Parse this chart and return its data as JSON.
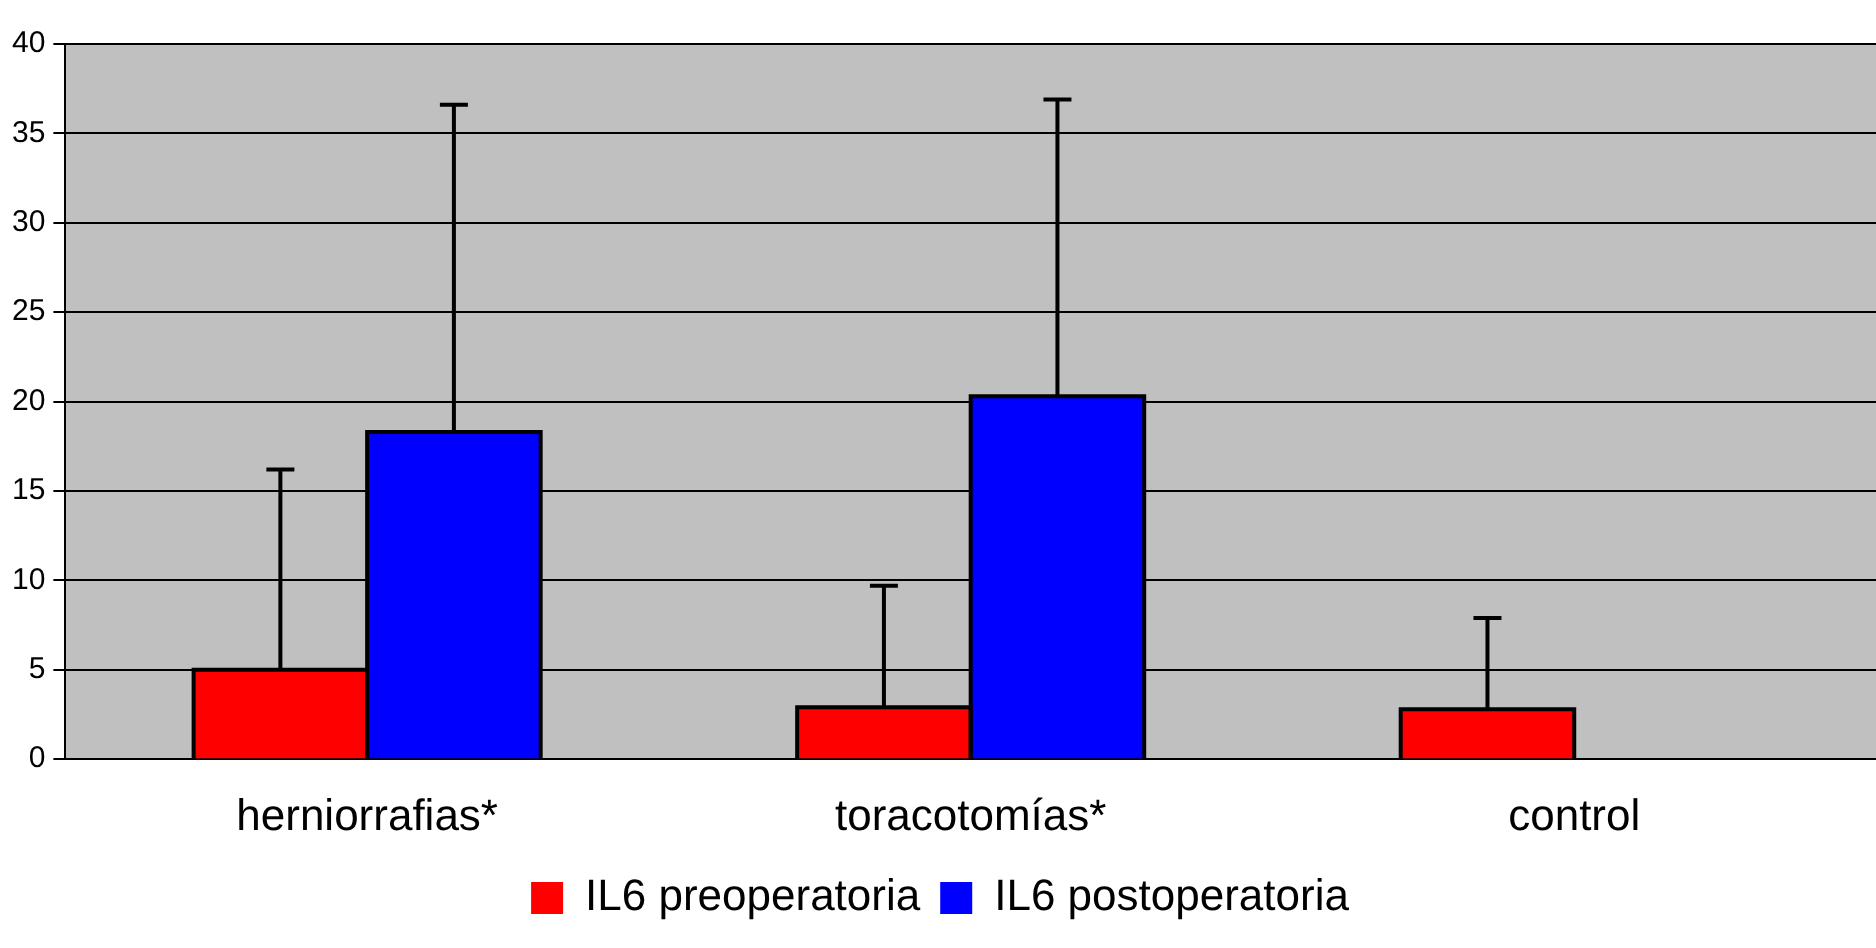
{
  "chart_data": {
    "type": "bar",
    "categories": [
      "herniorrafias*",
      "toracotomías*",
      "control"
    ],
    "series": [
      {
        "name": "IL6 preoperatoria",
        "color": "#ff0000",
        "values": [
          5.0,
          2.9,
          2.8
        ],
        "errors": [
          [
            5.0,
            16.2
          ],
          [
            2.9,
            9.7
          ],
          [
            2.8,
            7.9
          ]
        ]
      },
      {
        "name": "IL6 postoperatoria",
        "color": "#0000ff",
        "values": [
          18.3,
          20.3,
          null
        ],
        "errors": [
          [
            18.3,
            36.6
          ],
          [
            20.3,
            36.9
          ],
          null
        ]
      }
    ],
    "ylim": [
      0,
      40
    ],
    "yticks": [
      0,
      5,
      10,
      15,
      20,
      25,
      30,
      35,
      40
    ],
    "grid": "y",
    "legend": "bottom"
  }
}
